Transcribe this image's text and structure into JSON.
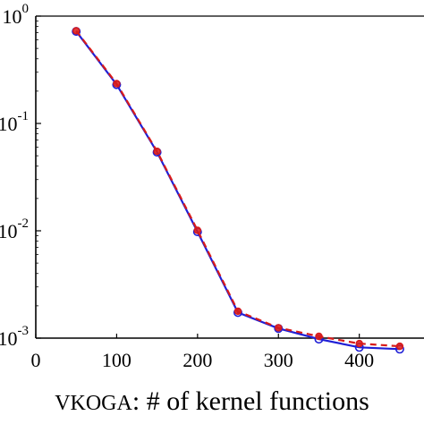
{
  "chart_data": {
    "type": "line",
    "title": "",
    "xlabel": "VKOGA: # of kernel functions",
    "ylabel": "",
    "xlim": [
      0,
      480
    ],
    "ylim": [
      0.001,
      1
    ],
    "yscale": "log",
    "grid": false,
    "x_ticks": [
      "0",
      "100",
      "200",
      "300",
      "400"
    ],
    "y_ticks": [
      {
        "base": "10",
        "exp": "0"
      },
      {
        "base": "10",
        "exp": "-1"
      },
      {
        "base": "10",
        "exp": "-2"
      },
      {
        "base": "10",
        "exp": "-3"
      }
    ],
    "x": [
      50,
      100,
      150,
      200,
      250,
      300,
      350,
      400,
      450
    ],
    "series": [
      {
        "line_style": "solid",
        "marker": "open-circle",
        "color": "#1f1fd6",
        "values": [
          0.72,
          0.23,
          0.054,
          0.0098,
          0.00173,
          0.00123,
          0.00098,
          0.00082,
          0.00079
        ]
      },
      {
        "line_style": "dashed",
        "marker": "filled-circle",
        "color": "#d81b1b",
        "values": [
          0.73,
          0.235,
          0.055,
          0.0101,
          0.00178,
          0.00125,
          0.00104,
          0.00089,
          0.00084
        ]
      }
    ]
  }
}
